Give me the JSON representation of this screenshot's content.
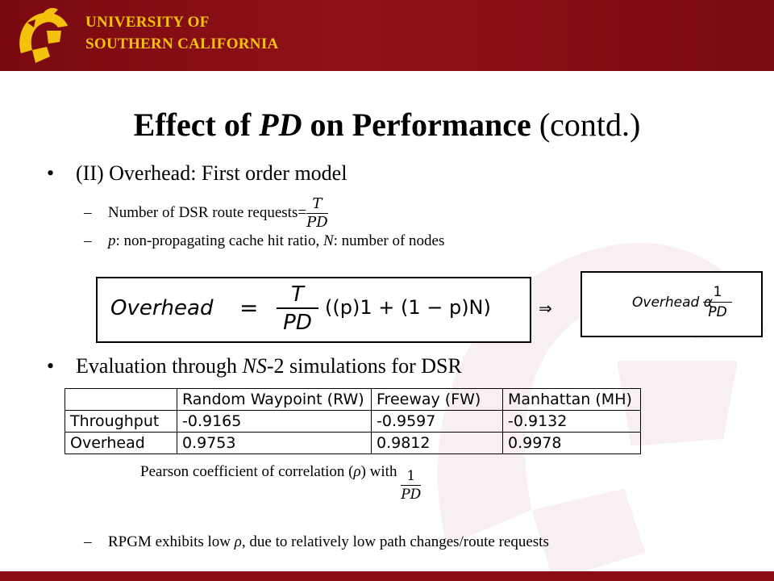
{
  "header": {
    "line1": "UNIVERSITY OF",
    "line2": "SOUTHERN CALIFORNIA",
    "logo_icon": "trojan-helmet-icon",
    "bg_color": "#8b0c14",
    "text_color": "#f4c20d"
  },
  "title": {
    "part1": "Effect of ",
    "part2": "PD",
    "part3": " on Performance",
    "part4": " (contd.)"
  },
  "bullet1": {
    "text": "(II) Overhead: First order model",
    "sub1": {
      "text": "Number of DSR route requests=",
      "frac_num": "T",
      "frac_den": "PD"
    },
    "sub2": {
      "p": "p",
      "mid": ": non-propagating cache hit ratio, ",
      "n": "N",
      "end": ": number of nodes"
    }
  },
  "formula_main": {
    "lhs": "Overhead",
    "eq": "=",
    "frac_num": "T",
    "frac_den": "PD",
    "rhs": "((p)1 + (1 − p)N)"
  },
  "implies": "⇒",
  "formula_prop": {
    "lhs": "Overhead α",
    "frac_num": "1",
    "frac_den": "PD"
  },
  "bullet2": {
    "pre": "Evaluation through ",
    "ns": "NS",
    "post": "-2 simulations for DSR"
  },
  "table": {
    "headers": [
      "",
      "Random Waypoint (RW)",
      "Freeway (FW)",
      "Manhattan (MH)"
    ],
    "rows": [
      [
        "Throughput",
        "-0.9165",
        "-0.9597",
        "-0.9132"
      ],
      [
        "Overhead",
        "0.9753",
        "0.9812",
        "0.9978"
      ]
    ]
  },
  "caption": {
    "text": "Pearson coefficient of correlation (",
    "rho": "ρ",
    "end": ") with",
    "frac_num": "1",
    "frac_den": "PD"
  },
  "sub3": {
    "pre": "RPGM exhibits low ",
    "rho": "ρ",
    "post": ", due to relatively low path changes/route requests"
  }
}
